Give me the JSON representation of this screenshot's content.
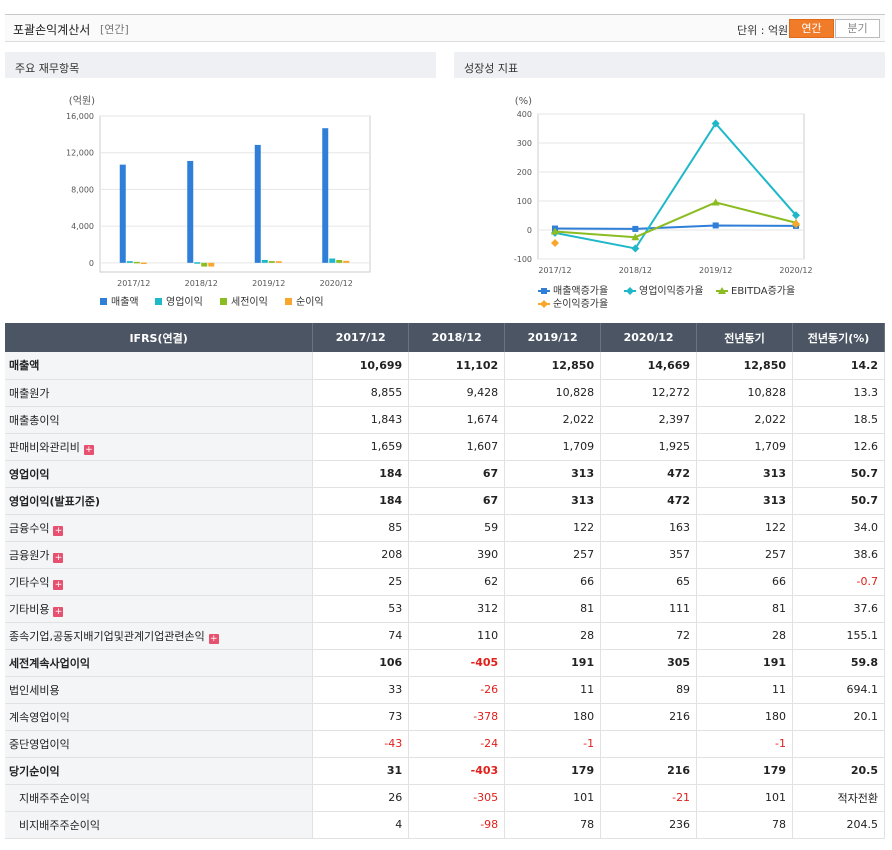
{
  "header": {
    "title": "포괄손익계산서",
    "subtitle": "[연간]",
    "unit_label": "단위 : 억원",
    "btn_annual": "연간",
    "btn_quarter": "분기"
  },
  "panels": {
    "left_title": "주요 재무항목",
    "right_title": "성장성 지표"
  },
  "chart_data": [
    {
      "type": "bar",
      "ylabel": "(억원)",
      "categories": [
        "2017/12",
        "2018/12",
        "2019/12",
        "2020/12"
      ],
      "ylim": [
        -1000,
        16000
      ],
      "yticks": [
        "16,000",
        "12,000",
        "8,000",
        "4,000",
        "0"
      ],
      "ytick_values": [
        16000,
        12000,
        8000,
        4000,
        0
      ],
      "series": [
        {
          "name": "매출액",
          "color": "#2f7ed8",
          "values": [
            10699,
            11102,
            12850,
            14669
          ]
        },
        {
          "name": "영업이익",
          "color": "#1fb8c9",
          "values": [
            184,
            67,
            313,
            472
          ]
        },
        {
          "name": "세전이익",
          "color": "#8bbc21",
          "values": [
            106,
            -405,
            191,
            305
          ]
        },
        {
          "name": "순이익",
          "color": "#f9a62e",
          "values": [
            31,
            -403,
            179,
            216
          ]
        }
      ],
      "legend_position": "bottom"
    },
    {
      "type": "line",
      "ylabel": "(%)",
      "categories": [
        "2017/12",
        "2018/12",
        "2019/12",
        "2020/12"
      ],
      "ylim": [
        -100,
        400
      ],
      "yticks": [
        "400",
        "300",
        "200",
        "100",
        "0",
        "-100"
      ],
      "ytick_values": [
        400,
        300,
        200,
        100,
        0,
        -100
      ],
      "series": [
        {
          "name": "매출액증가율",
          "color": "#2f7ed8",
          "marker": "square",
          "values": [
            5,
            3.8,
            15.7,
            14.2
          ]
        },
        {
          "name": "영업이익증가율",
          "color": "#1fb8c9",
          "marker": "diamond",
          "values": [
            -10,
            -63.6,
            367.2,
            50.7
          ]
        },
        {
          "name": "EBITDA증가율",
          "color": "#8bbc21",
          "marker": "triangle",
          "values": [
            -5,
            -25,
            95,
            25
          ]
        },
        {
          "name": "순이익증가율",
          "color": "#f9a62e",
          "marker": "diamond",
          "values": [
            -45,
            null,
            null,
            20.5
          ]
        }
      ],
      "legend_position": "bottom"
    }
  ],
  "table": {
    "headers": [
      "IFRS(연결)",
      "2017/12",
      "2018/12",
      "2019/12",
      "2020/12",
      "전년동기",
      "전년동기(%)"
    ],
    "rows": [
      {
        "label": "매출액",
        "bold": true,
        "plus": false,
        "indent": false,
        "cells": [
          "10,699",
          "11,102",
          "12,850",
          "14,669",
          "12,850",
          "14.2"
        ]
      },
      {
        "label": "매출원가",
        "bold": false,
        "plus": false,
        "indent": false,
        "cells": [
          "8,855",
          "9,428",
          "10,828",
          "12,272",
          "10,828",
          "13.3"
        ]
      },
      {
        "label": "매출총이익",
        "bold": false,
        "plus": false,
        "indent": false,
        "cells": [
          "1,843",
          "1,674",
          "2,022",
          "2,397",
          "2,022",
          "18.5"
        ]
      },
      {
        "label": "판매비와관리비",
        "bold": false,
        "plus": true,
        "indent": false,
        "cells": [
          "1,659",
          "1,607",
          "1,709",
          "1,925",
          "1,709",
          "12.6"
        ]
      },
      {
        "label": "영업이익",
        "bold": true,
        "plus": false,
        "indent": false,
        "cells": [
          "184",
          "67",
          "313",
          "472",
          "313",
          "50.7"
        ]
      },
      {
        "label": "영업이익(발표기준)",
        "bold": true,
        "plus": false,
        "indent": false,
        "cells": [
          "184",
          "67",
          "313",
          "472",
          "313",
          "50.7"
        ]
      },
      {
        "label": "금융수익",
        "bold": false,
        "plus": true,
        "indent": false,
        "cells": [
          "85",
          "59",
          "122",
          "163",
          "122",
          "34.0"
        ]
      },
      {
        "label": "금융원가",
        "bold": false,
        "plus": true,
        "indent": false,
        "cells": [
          "208",
          "390",
          "257",
          "357",
          "257",
          "38.6"
        ]
      },
      {
        "label": "기타수익",
        "bold": false,
        "plus": true,
        "indent": false,
        "cells": [
          "25",
          "62",
          "66",
          "65",
          "66",
          "-0.7"
        ]
      },
      {
        "label": "기타비용",
        "bold": false,
        "plus": true,
        "indent": false,
        "cells": [
          "53",
          "312",
          "81",
          "111",
          "81",
          "37.6"
        ]
      },
      {
        "label": "종속기업,공동지배기업및관계기업관련손익",
        "bold": false,
        "plus": true,
        "indent": false,
        "cells": [
          "74",
          "110",
          "28",
          "72",
          "28",
          "155.1"
        ]
      },
      {
        "label": "세전계속사업이익",
        "bold": true,
        "plus": false,
        "indent": false,
        "cells": [
          "106",
          "-405",
          "191",
          "305",
          "191",
          "59.8"
        ]
      },
      {
        "label": "법인세비용",
        "bold": false,
        "plus": false,
        "indent": false,
        "cells": [
          "33",
          "-26",
          "11",
          "89",
          "11",
          "694.1"
        ]
      },
      {
        "label": "계속영업이익",
        "bold": false,
        "plus": false,
        "indent": false,
        "cells": [
          "73",
          "-378",
          "180",
          "216",
          "180",
          "20.1"
        ]
      },
      {
        "label": "중단영업이익",
        "bold": false,
        "plus": false,
        "indent": false,
        "cells": [
          "-43",
          "-24",
          "-1",
          "",
          "-1",
          ""
        ]
      },
      {
        "label": "당기순이익",
        "bold": true,
        "plus": false,
        "indent": false,
        "cells": [
          "31",
          "-403",
          "179",
          "216",
          "179",
          "20.5"
        ]
      },
      {
        "label": "지배주주순이익",
        "bold": false,
        "plus": false,
        "indent": true,
        "cells": [
          "26",
          "-305",
          "101",
          "-21",
          "101",
          "적자전환"
        ]
      },
      {
        "label": "비지배주주순이익",
        "bold": false,
        "plus": false,
        "indent": true,
        "cells": [
          "4",
          "-98",
          "78",
          "236",
          "78",
          "204.5"
        ]
      }
    ]
  }
}
